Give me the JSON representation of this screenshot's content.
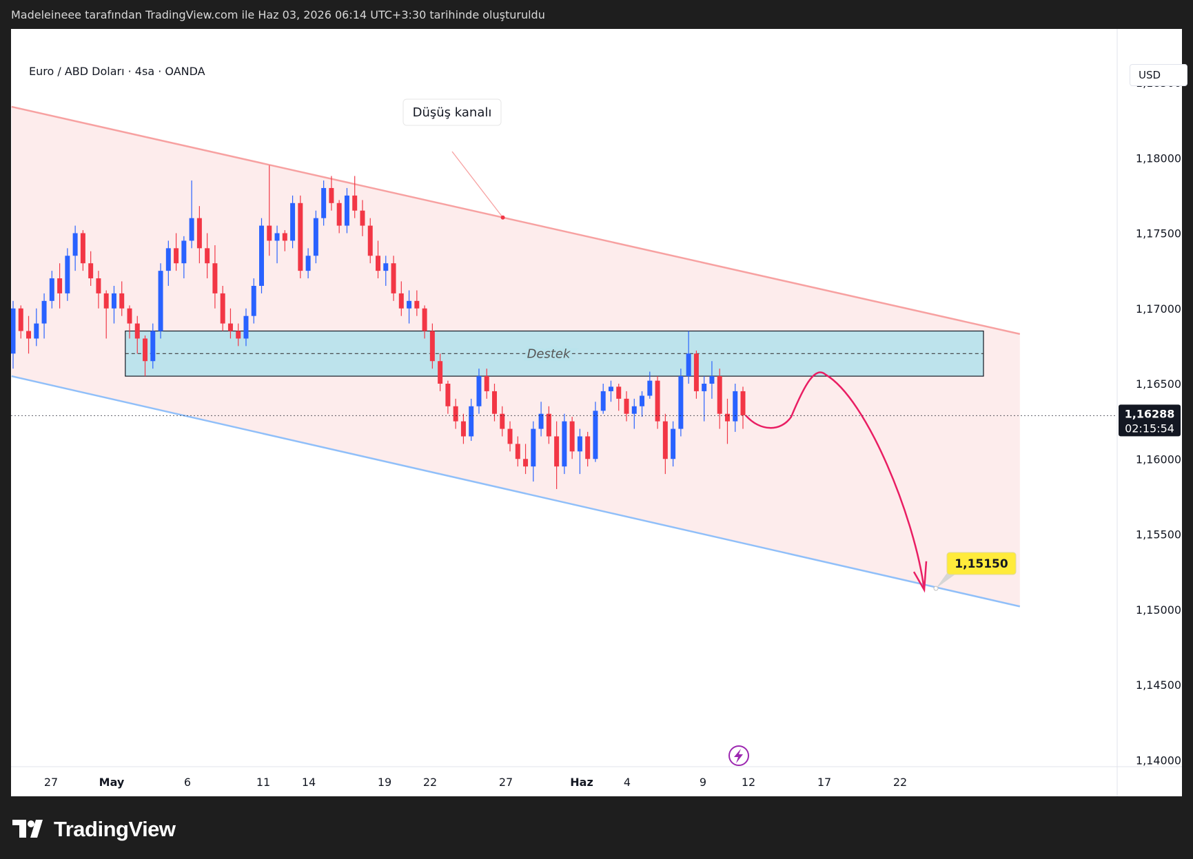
{
  "header": {
    "caption": "Madeleineee tarafından TradingView.com ile Haz 03, 2026 06:14 UTC+3:30 tarihinde oluşturuldu"
  },
  "legend": {
    "title": "Euro / ABD Doları · 4sa · OANDA",
    "currency": "USD"
  },
  "footer": {
    "logo_text": "TradingView"
  },
  "colors": {
    "up": "#2962ff",
    "down": "#f23645",
    "channel_fill": "#fdecec",
    "upper_line": "#f7a1a1",
    "lower_line": "#90bff9",
    "zone_fill": "#b9e3ec",
    "arrow": "#e91e63",
    "target_bg": "#ffeb3b"
  },
  "chart_data": {
    "type": "candlestick",
    "title": "",
    "y_axis": {
      "min": 1.14,
      "max": 1.1875,
      "ticks": [
        "1,18500",
        "1,18000",
        "1,17500",
        "1,17000",
        "1,16500",
        "1,16000",
        "1,15500",
        "1,15000",
        "1,14500",
        "1,14000"
      ]
    },
    "x_axis": {
      "labels": [
        {
          "label": "27",
          "day": 0
        },
        {
          "label": "May",
          "day": 4
        },
        {
          "label": "6",
          "day": 9
        },
        {
          "label": "11",
          "day": 14
        },
        {
          "label": "14",
          "day": 17
        },
        {
          "label": "19",
          "day": 22
        },
        {
          "label": "22",
          "day": 25
        },
        {
          "label": "27",
          "day": 30
        },
        {
          "label": "Haz",
          "day": 35
        },
        {
          "label": "4",
          "day": 38
        },
        {
          "label": "9",
          "day": 43
        },
        {
          "label": "12",
          "day": 46
        },
        {
          "label": "17",
          "day": 51
        },
        {
          "label": "22",
          "day": 56
        }
      ]
    },
    "current_price": {
      "label": "1,16288",
      "countdown": "02:15:54",
      "value": 1.16288
    },
    "channel": {
      "name": "Düşüş kanalı",
      "upper": [
        {
          "day": -2.6,
          "price": 1.1834
        },
        {
          "day": 63.9,
          "price": 1.1683
        }
      ],
      "lower": [
        {
          "day": -2.6,
          "price": 1.1655
        },
        {
          "day": 63.9,
          "price": 1.1502
        }
      ]
    },
    "support_zone": {
      "label": "Destek",
      "top": 1.1685,
      "bottom": 1.1655,
      "mid": 1.167,
      "day_start": 4.9,
      "day_end": 61.5
    },
    "projection_target": {
      "label": "1,15150",
      "value": 1.1515
    },
    "ohlc": [
      [
        1.167,
        1.1705,
        1.166,
        1.17
      ],
      [
        1.17,
        1.1702,
        1.168,
        1.1685
      ],
      [
        1.1685,
        1.1695,
        1.167,
        1.168
      ],
      [
        1.168,
        1.17,
        1.1675,
        1.169
      ],
      [
        1.169,
        1.171,
        1.168,
        1.1705
      ],
      [
        1.1705,
        1.1725,
        1.17,
        1.172
      ],
      [
        1.172,
        1.173,
        1.17,
        1.171
      ],
      [
        1.171,
        1.174,
        1.1705,
        1.1735
      ],
      [
        1.1735,
        1.1755,
        1.1725,
        1.175
      ],
      [
        1.175,
        1.1752,
        1.1725,
        1.173
      ],
      [
        1.173,
        1.1738,
        1.1715,
        1.172
      ],
      [
        1.172,
        1.1725,
        1.17,
        1.171
      ],
      [
        1.171,
        1.1712,
        1.168,
        1.17
      ],
      [
        1.17,
        1.1715,
        1.169,
        1.171
      ],
      [
        1.171,
        1.1718,
        1.1695,
        1.17
      ],
      [
        1.17,
        1.1702,
        1.168,
        1.169
      ],
      [
        1.169,
        1.1695,
        1.167,
        1.168
      ],
      [
        1.168,
        1.1682,
        1.1655,
        1.1665
      ],
      [
        1.1665,
        1.169,
        1.166,
        1.1685
      ],
      [
        1.1685,
        1.173,
        1.168,
        1.1725
      ],
      [
        1.1725,
        1.1745,
        1.1715,
        1.174
      ],
      [
        1.174,
        1.175,
        1.1725,
        1.173
      ],
      [
        1.173,
        1.1748,
        1.172,
        1.1745
      ],
      [
        1.1745,
        1.1785,
        1.174,
        1.176
      ],
      [
        1.176,
        1.1768,
        1.173,
        1.174
      ],
      [
        1.174,
        1.175,
        1.172,
        1.173
      ],
      [
        1.173,
        1.1742,
        1.17,
        1.171
      ],
      [
        1.171,
        1.1715,
        1.1685,
        1.169
      ],
      [
        1.169,
        1.17,
        1.168,
        1.1685
      ],
      [
        1.1685,
        1.169,
        1.1675,
        1.168
      ],
      [
        1.168,
        1.17,
        1.1675,
        1.1695
      ],
      [
        1.1695,
        1.172,
        1.169,
        1.1715
      ],
      [
        1.1715,
        1.176,
        1.171,
        1.1755
      ],
      [
        1.1755,
        1.1795,
        1.1735,
        1.1745
      ],
      [
        1.1745,
        1.1755,
        1.173,
        1.175
      ],
      [
        1.175,
        1.1752,
        1.1738,
        1.1745
      ],
      [
        1.1745,
        1.1775,
        1.174,
        1.177
      ],
      [
        1.177,
        1.1775,
        1.172,
        1.1725
      ],
      [
        1.1725,
        1.174,
        1.172,
        1.1735
      ],
      [
        1.1735,
        1.1765,
        1.173,
        1.176
      ],
      [
        1.176,
        1.1785,
        1.1755,
        1.178
      ],
      [
        1.178,
        1.1788,
        1.1765,
        1.177
      ],
      [
        1.177,
        1.1772,
        1.175,
        1.1755
      ],
      [
        1.1755,
        1.178,
        1.175,
        1.1775
      ],
      [
        1.1775,
        1.1788,
        1.176,
        1.1765
      ],
      [
        1.1765,
        1.1772,
        1.1748,
        1.1755
      ],
      [
        1.1755,
        1.176,
        1.173,
        1.1735
      ],
      [
        1.1735,
        1.1745,
        1.172,
        1.1725
      ],
      [
        1.1725,
        1.1735,
        1.1715,
        1.173
      ],
      [
        1.173,
        1.1735,
        1.1705,
        1.171
      ],
      [
        1.171,
        1.1718,
        1.1695,
        1.17
      ],
      [
        1.17,
        1.1712,
        1.169,
        1.1705
      ],
      [
        1.1705,
        1.1712,
        1.1695,
        1.17
      ],
      [
        1.17,
        1.1702,
        1.168,
        1.1685
      ],
      [
        1.1685,
        1.169,
        1.166,
        1.1665
      ],
      [
        1.1665,
        1.167,
        1.1645,
        1.165
      ],
      [
        1.165,
        1.1652,
        1.163,
        1.1635
      ],
      [
        1.1635,
        1.164,
        1.162,
        1.1625
      ],
      [
        1.1625,
        1.163,
        1.161,
        1.1615
      ],
      [
        1.1615,
        1.164,
        1.1612,
        1.1635
      ],
      [
        1.1635,
        1.166,
        1.163,
        1.1655
      ],
      [
        1.1655,
        1.166,
        1.164,
        1.1645
      ],
      [
        1.1645,
        1.165,
        1.1625,
        1.163
      ],
      [
        1.163,
        1.1635,
        1.1615,
        1.162
      ],
      [
        1.162,
        1.1625,
        1.1605,
        1.161
      ],
      [
        1.161,
        1.1615,
        1.1595,
        1.16
      ],
      [
        1.16,
        1.161,
        1.159,
        1.1595
      ],
      [
        1.1595,
        1.1625,
        1.1585,
        1.162
      ],
      [
        1.162,
        1.1638,
        1.1615,
        1.163
      ],
      [
        1.163,
        1.1635,
        1.161,
        1.1615
      ],
      [
        1.1615,
        1.1625,
        1.158,
        1.1595
      ],
      [
        1.1595,
        1.163,
        1.159,
        1.1625
      ],
      [
        1.1625,
        1.1628,
        1.16,
        1.1605
      ],
      [
        1.1605,
        1.162,
        1.159,
        1.1615
      ],
      [
        1.1615,
        1.1618,
        1.1595,
        1.16
      ],
      [
        1.16,
        1.1638,
        1.1598,
        1.1632
      ],
      [
        1.1632,
        1.165,
        1.163,
        1.1645
      ],
      [
        1.1645,
        1.1652,
        1.1638,
        1.1648
      ],
      [
        1.1648,
        1.165,
        1.1632,
        1.164
      ],
      [
        1.164,
        1.1645,
        1.1625,
        1.163
      ],
      [
        1.163,
        1.164,
        1.162,
        1.1635
      ],
      [
        1.1635,
        1.1645,
        1.1628,
        1.1642
      ],
      [
        1.1642,
        1.1658,
        1.164,
        1.1652
      ],
      [
        1.1652,
        1.1655,
        1.162,
        1.1625
      ],
      [
        1.1625,
        1.163,
        1.159,
        1.16
      ],
      [
        1.16,
        1.1625,
        1.1595,
        1.162
      ],
      [
        1.162,
        1.166,
        1.1615,
        1.1655
      ],
      [
        1.1655,
        1.1685,
        1.165,
        1.167
      ],
      [
        1.167,
        1.1672,
        1.164,
        1.1645
      ],
      [
        1.1645,
        1.1655,
        1.1625,
        1.165
      ],
      [
        1.165,
        1.1665,
        1.164,
        1.1655
      ],
      [
        1.1655,
        1.166,
        1.162,
        1.163
      ],
      [
        1.163,
        1.164,
        1.161,
        1.1625
      ],
      [
        1.1625,
        1.165,
        1.1618,
        1.1645
      ],
      [
        1.1645,
        1.1648,
        1.162,
        1.1629
      ]
    ]
  }
}
